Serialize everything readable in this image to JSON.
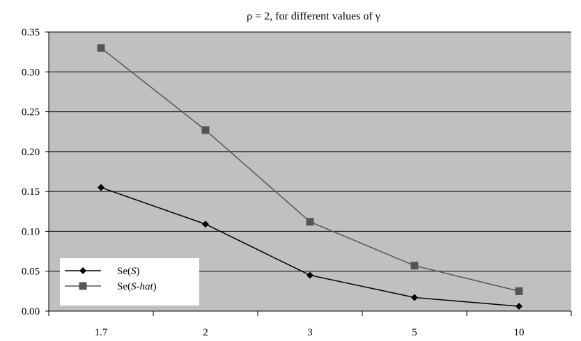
{
  "chart_data": {
    "type": "line",
    "title": "ρ = 2, for different values of γ",
    "categories": [
      "1.7",
      "2",
      "3",
      "5",
      "10"
    ],
    "ylim": [
      0,
      0.35
    ],
    "yticks": [
      "0.00",
      "0.05",
      "0.10",
      "0.15",
      "0.20",
      "0.25",
      "0.30",
      "0.35"
    ],
    "grid": true,
    "legend_position": "bottom-left",
    "series": [
      {
        "name_prefix": "Se(",
        "name_var": "S",
        "name_suffix": ")",
        "values": [
          0.155,
          0.109,
          0.045,
          0.017,
          0.006
        ],
        "color": "#000000",
        "marker": "diamond"
      },
      {
        "name_prefix": "Se(",
        "name_var": "S-hat",
        "name_suffix": ")",
        "values": [
          0.33,
          0.227,
          0.112,
          0.057,
          0.025
        ],
        "color": "#555555",
        "marker": "square"
      }
    ],
    "colors": {
      "plot_background": "#c0c0c0",
      "grid": "#000000"
    }
  }
}
